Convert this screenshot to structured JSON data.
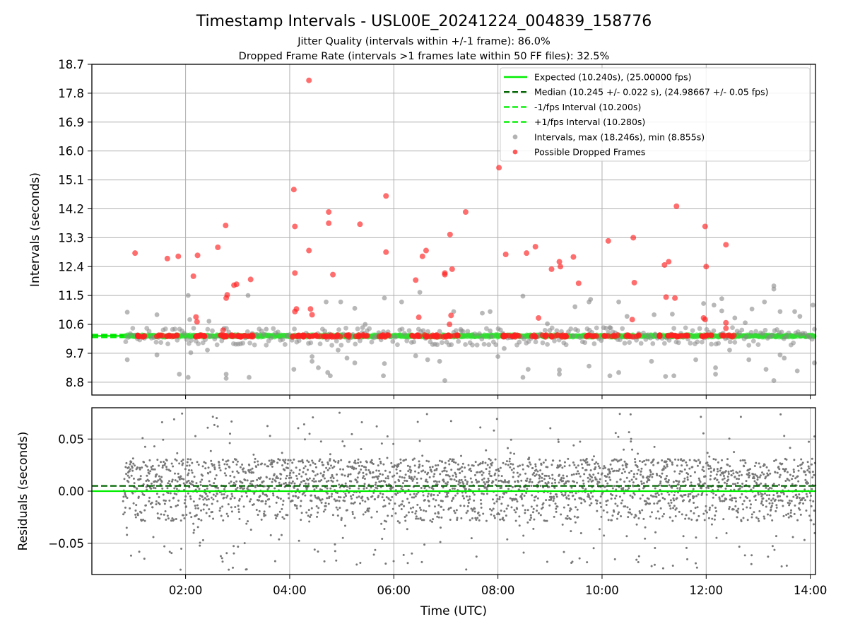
{
  "chart_data": [
    {
      "type": "scatter",
      "title": "Timestamp Intervals - USL00E_20241224_004839_158776",
      "subtitle_lines": [
        "Jitter Quality (intervals within +/-1 frame): 86.0%",
        "Dropped Frame Rate (intervals >1 frames late within 50 FF files): 32.5%"
      ],
      "ylabel": "Intervals (seconds)",
      "ylim": [
        8.4,
        18.7
      ],
      "yticks": [
        "18.7",
        "17.8",
        "16.9",
        "16.0",
        "15.1",
        "14.2",
        "13.3",
        "12.4",
        "11.5",
        "10.6",
        "9.7",
        "8.8"
      ],
      "xlim_hours": [
        0.2,
        14.1
      ],
      "grid": true,
      "legend_position": "top-right",
      "legend": [
        {
          "label": "Expected (10.240s), (25.00000 fps)",
          "style": "solid",
          "color": "#00ee00"
        },
        {
          "label": "Median (10.245 +/- 0.022 s), (24.98667 +/- 0.05 fps)",
          "style": "dashed",
          "color": "#006400"
        },
        {
          "label": "-1/fps Interval (10.200s)",
          "style": "dashed",
          "color": "#00ee00"
        },
        {
          "label": "+1/fps Interval (10.280s)",
          "style": "dashed",
          "color": "#00ee00"
        },
        {
          "label": "Intervals, max (18.246s), min (8.855s)",
          "style": "dot",
          "color": "#999999"
        },
        {
          "label": "Possible Dropped Frames",
          "style": "dot",
          "color": "#ff2020"
        }
      ],
      "lines": {
        "expected": 10.24,
        "median": 10.245,
        "minus_fps": 10.2,
        "plus_fps": 10.28
      },
      "dropped_points": [
        [
          1.03,
          12.82
        ],
        [
          1.65,
          12.65
        ],
        [
          1.86,
          12.72
        ],
        [
          2.15,
          12.1
        ],
        [
          2.23,
          12.75
        ],
        [
          2.2,
          10.83
        ],
        [
          2.22,
          10.68
        ],
        [
          2.62,
          13.0
        ],
        [
          2.77,
          13.68
        ],
        [
          2.78,
          11.42
        ],
        [
          2.8,
          11.52
        ],
        [
          2.93,
          11.82
        ],
        [
          2.98,
          11.85
        ],
        [
          3.25,
          12.0
        ],
        [
          2.72,
          10.42
        ],
        [
          4.08,
          14.8
        ],
        [
          4.1,
          13.65
        ],
        [
          4.1,
          12.2
        ],
        [
          4.1,
          11.0
        ],
        [
          4.13,
          11.08
        ],
        [
          4.37,
          12.9
        ],
        [
          4.37,
          18.2
        ],
        [
          4.4,
          11.08
        ],
        [
          4.43,
          10.9
        ],
        [
          4.75,
          14.1
        ],
        [
          4.75,
          13.75
        ],
        [
          4.83,
          12.15
        ],
        [
          5.35,
          13.72
        ],
        [
          5.85,
          14.6
        ],
        [
          5.85,
          12.85
        ],
        [
          6.42,
          11.98
        ],
        [
          6.48,
          10.82
        ],
        [
          6.55,
          12.72
        ],
        [
          6.62,
          12.9
        ],
        [
          6.98,
          12.15
        ],
        [
          6.98,
          12.2
        ],
        [
          7.08,
          13.4
        ],
        [
          7.12,
          12.32
        ],
        [
          7.1,
          10.88
        ],
        [
          7.07,
          10.6
        ],
        [
          7.38,
          14.1
        ],
        [
          8.02,
          15.48
        ],
        [
          8.15,
          12.78
        ],
        [
          8.55,
          12.82
        ],
        [
          8.72,
          13.02
        ],
        [
          8.78,
          10.8
        ],
        [
          9.03,
          12.32
        ],
        [
          9.18,
          12.55
        ],
        [
          9.2,
          12.4
        ],
        [
          9.45,
          12.7
        ],
        [
          9.55,
          11.88
        ],
        [
          10.12,
          13.2
        ],
        [
          10.6,
          13.3
        ],
        [
          10.62,
          11.9
        ],
        [
          10.58,
          10.75
        ],
        [
          11.2,
          12.45
        ],
        [
          11.28,
          12.55
        ],
        [
          11.23,
          11.45
        ],
        [
          11.4,
          11.42
        ],
        [
          11.43,
          14.28
        ],
        [
          12.38,
          10.65
        ],
        [
          11.98,
          13.65
        ],
        [
          12.0,
          12.4
        ],
        [
          12.38,
          13.08
        ],
        [
          11.95,
          10.8
        ],
        [
          11.98,
          10.75
        ],
        [
          12.38,
          10.48
        ]
      ],
      "gray_outliers": [
        [
          0.88,
          10.98
        ],
        [
          0.88,
          9.5
        ],
        [
          1.45,
          10.9
        ],
        [
          1.45,
          9.65
        ],
        [
          1.88,
          9.05
        ],
        [
          2.05,
          11.5
        ],
        [
          2.08,
          10.75
        ],
        [
          2.1,
          9.72
        ],
        [
          2.05,
          8.95
        ],
        [
          2.42,
          9.8
        ],
        [
          2.45,
          10.7
        ],
        [
          2.78,
          9.05
        ],
        [
          2.78,
          8.92
        ],
        [
          3.2,
          11.5
        ],
        [
          3.22,
          8.95
        ],
        [
          3.55,
          10.45
        ],
        [
          4.08,
          9.2
        ],
        [
          4.43,
          9.45
        ],
        [
          4.43,
          9.6
        ],
        [
          4.7,
          11.3
        ],
        [
          4.73,
          9.1
        ],
        [
          4.78,
          9.0
        ],
        [
          4.93,
          9.8
        ],
        [
          4.98,
          11.3
        ],
        [
          5.25,
          11.1
        ],
        [
          5.1,
          9.55
        ],
        [
          5.25,
          9.4
        ],
        [
          5.45,
          10.6
        ],
        [
          5.82,
          11.42
        ],
        [
          5.82,
          9.38
        ],
        [
          5.8,
          9.0
        ],
        [
          6.15,
          11.3
        ],
        [
          6.42,
          9.62
        ],
        [
          6.65,
          9.5
        ],
        [
          6.88,
          9.45
        ],
        [
          6.98,
          8.85
        ],
        [
          7.15,
          11.0
        ],
        [
          7.3,
          10.4
        ],
        [
          7.7,
          10.95
        ],
        [
          7.85,
          11.0
        ],
        [
          7.85,
          10.4
        ],
        [
          8.0,
          9.6
        ],
        [
          8.12,
          9.85
        ],
        [
          8.48,
          11.48
        ],
        [
          8.58,
          9.2
        ],
        [
          8.48,
          8.95
        ],
        [
          9.18,
          9.18
        ],
        [
          9.18,
          9.05
        ],
        [
          9.48,
          11.15
        ],
        [
          9.78,
          11.38
        ],
        [
          9.75,
          9.3
        ],
        [
          9.75,
          11.3
        ],
        [
          10.15,
          9.0
        ],
        [
          10.32,
          11.3
        ],
        [
          10.32,
          9.1
        ],
        [
          10.48,
          10.85
        ],
        [
          10.95,
          9.45
        ],
        [
          11.0,
          10.9
        ],
        [
          11.35,
          10.92
        ],
        [
          11.38,
          9.0
        ],
        [
          11.22,
          8.98
        ],
        [
          11.8,
          9.5
        ],
        [
          12.15,
          11.2
        ],
        [
          12.18,
          9.25
        ],
        [
          12.18,
          9.05
        ],
        [
          12.3,
          11.4
        ],
        [
          12.3,
          11.02
        ],
        [
          12.45,
          9.8
        ],
        [
          12.75,
          10.65
        ],
        [
          12.82,
          9.5
        ],
        [
          12.88,
          11.08
        ],
        [
          13.12,
          11.3
        ],
        [
          13.15,
          9.2
        ],
        [
          13.3,
          11.8
        ],
        [
          13.3,
          11.7
        ],
        [
          13.42,
          11.0
        ],
        [
          13.42,
          9.65
        ],
        [
          13.5,
          9.55
        ],
        [
          13.7,
          11.0
        ],
        [
          13.75,
          9.15
        ],
        [
          13.8,
          10.85
        ],
        [
          14.05,
          11.2
        ],
        [
          14.08,
          9.4
        ],
        [
          13.3,
          8.85
        ],
        [
          4.55,
          9.25
        ],
        [
          5.4,
          10.5
        ],
        [
          8.95,
          10.62
        ],
        [
          10.15,
          10.5
        ],
        [
          6.5,
          11.6
        ],
        [
          11.95,
          11.25
        ],
        [
          12.55,
          10.8
        ]
      ]
    },
    {
      "type": "scatter",
      "ylabel": "Residuals (seconds)",
      "xlabel": "Time (UTC)",
      "ylim": [
        -0.08,
        0.08
      ],
      "yticks": [
        "0.05",
        "0.00",
        "−0.05"
      ],
      "xticks": [
        "02:00",
        "04:00",
        "06:00",
        "08:00",
        "10:00",
        "12:00",
        "14:00"
      ],
      "xlim_hours": [
        0.2,
        14.1
      ],
      "grid": true,
      "lines": {
        "expected": 0.0,
        "median": 0.005
      },
      "residual_points": {
        "x_start_hours": 0.8,
        "x_end_hours": 14.1,
        "count": 2700,
        "y_min": -0.076,
        "y_max": 0.076,
        "cluster_high": 0.02,
        "cluster_low": -0.02
      }
    }
  ]
}
